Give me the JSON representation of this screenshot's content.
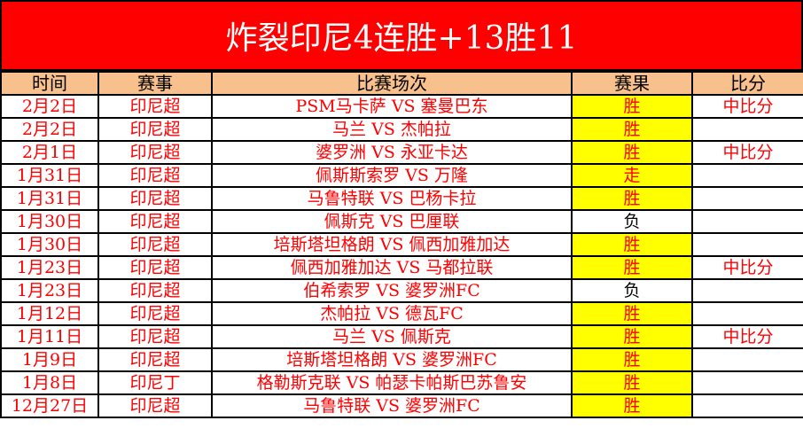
{
  "title": "炸裂印尼4连胜+13胜11",
  "headers": [
    "时间",
    "赛事",
    "比赛场次",
    "赛果",
    "比分"
  ],
  "colors": {
    "title_bg": "#ff0000",
    "header_bg": "#f8c08c",
    "win_bg": "#ffff00",
    "text": "#ff0000"
  },
  "rows": [
    {
      "date": "2月2日",
      "league": "印尼超",
      "match": "PSM马卡萨 VS 塞曼巴东",
      "result": "胜",
      "score": "中比分"
    },
    {
      "date": "2月2日",
      "league": "印尼超",
      "match": "马兰 VS 杰帕拉",
      "result": "胜",
      "score": ""
    },
    {
      "date": "2月1日",
      "league": "印尼超",
      "match": "婆罗洲 VS 永亚卡达",
      "result": "胜",
      "score": "中比分"
    },
    {
      "date": "1月31日",
      "league": "印尼超",
      "match": "佩斯斯索罗 VS 万隆",
      "result": "走",
      "score": ""
    },
    {
      "date": "1月31日",
      "league": "印尼超",
      "match": "马鲁特联 VS 巴杨卡拉",
      "result": "胜",
      "score": ""
    },
    {
      "date": "1月30日",
      "league": "印尼超",
      "match": "佩斯克 VS 巴厘联",
      "result": "负",
      "score": ""
    },
    {
      "date": "1月30日",
      "league": "印尼超",
      "match": "培斯塔坦格朗 VS 佩西加雅加达",
      "result": "胜",
      "score": ""
    },
    {
      "date": "1月23日",
      "league": "印尼超",
      "match": "佩西加雅加达 VS 马都拉联",
      "result": "胜",
      "score": "中比分"
    },
    {
      "date": "1月23日",
      "league": "印尼超",
      "match": "伯希索罗 VS 婆罗洲FC",
      "result": "负",
      "score": ""
    },
    {
      "date": "1月12日",
      "league": "印尼超",
      "match": "杰帕拉 VS 德瓦FC",
      "result": "胜",
      "score": ""
    },
    {
      "date": "1月11日",
      "league": "印尼超",
      "match": "马兰 VS 佩斯克",
      "result": "胜",
      "score": "中比分"
    },
    {
      "date": "1月9日",
      "league": "印尼超",
      "match": "培斯塔坦格朗 VS 婆罗洲FC",
      "result": "胜",
      "score": ""
    },
    {
      "date": "1月8日",
      "league": "印尼丁",
      "match": "格勒斯克联 VS 帕瑟卡帕斯巴苏鲁安",
      "result": "胜",
      "score": ""
    },
    {
      "date": "12月27日",
      "league": "印尼超",
      "match": "马鲁特联 VS 婆罗洲FC",
      "result": "胜",
      "score": ""
    }
  ]
}
